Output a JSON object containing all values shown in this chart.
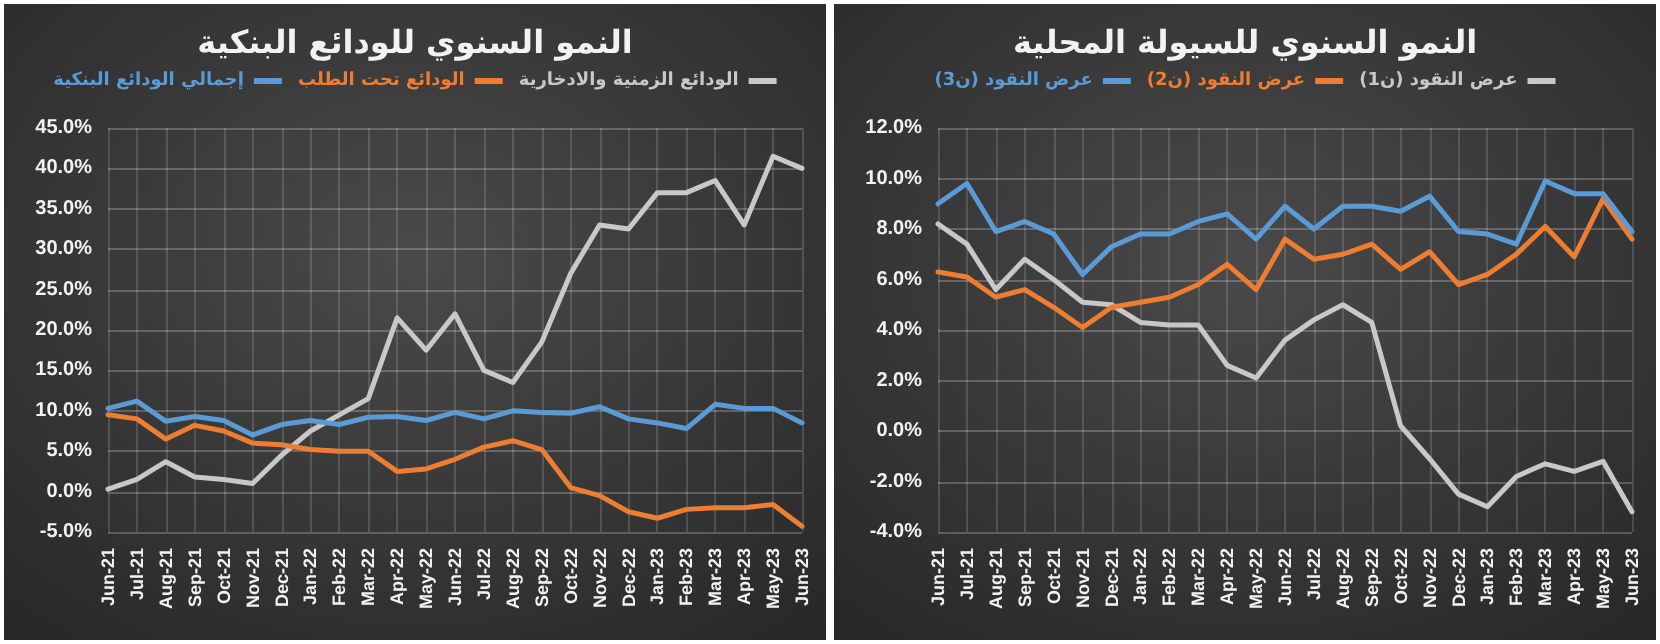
{
  "chart_data": [
    {
      "type": "line",
      "title": "النمو السنوي للودائع البنكية",
      "categories": [
        "Jun-21",
        "Jul-21",
        "Aug-21",
        "Sep-21",
        "Oct-21",
        "Nov-21",
        "Dec-21",
        "Jan-22",
        "Feb-22",
        "Mar-22",
        "Apr-22",
        "May-22",
        "Jun-22",
        "Jul-22",
        "Aug-22",
        "Sep-22",
        "Oct-22",
        "Nov-22",
        "Dec-22",
        "Jan-23",
        "Feb-23",
        "Mar-23",
        "Apr-23",
        "May-23",
        "Jun-23"
      ],
      "series": [
        {
          "name": "الودائع الزمنية والادخارية",
          "color": "#c8c8c8",
          "values": [
            0.3,
            1.5,
            3.7,
            1.8,
            1.5,
            1.0,
            4.5,
            7.5,
            9.5,
            11.5,
            21.5,
            17.5,
            22,
            15,
            13.5,
            18.5,
            27,
            33,
            32.5,
            37,
            37,
            38.5,
            33,
            41.5,
            40
          ]
        },
        {
          "name": "الودائع تحت الطلب",
          "color": "#ed7d31",
          "values": [
            9.5,
            9,
            6.5,
            8.2,
            7.5,
            6,
            5.8,
            5.2,
            5,
            5,
            2.5,
            2.8,
            4,
            5.5,
            6.3,
            5.2,
            0.5,
            -0.5,
            -2.5,
            -3.3,
            -2.2,
            -2,
            -2,
            -1.6,
            -4.3
          ]
        },
        {
          "name": "إجمالي الودائع البنكية",
          "color": "#5b9bd5",
          "values": [
            10.3,
            11.2,
            8.7,
            9.3,
            8.8,
            7,
            8.3,
            8.8,
            8.3,
            9.2,
            9.3,
            8.8,
            9.8,
            9,
            10,
            9.8,
            9.7,
            10.5,
            9,
            8.5,
            7.8,
            10.8,
            10.3,
            10.3,
            8.5
          ]
        }
      ],
      "ylim": [
        -5,
        45
      ],
      "yticks": [
        {
          "value": -5,
          "label": "-5.0%"
        },
        {
          "value": 0,
          "label": "0.0%"
        },
        {
          "value": 5,
          "label": "5.0%"
        },
        {
          "value": 10,
          "label": "10.0%"
        },
        {
          "value": 15,
          "label": "15.0%"
        },
        {
          "value": 20,
          "label": "20.0%"
        },
        {
          "value": 25,
          "label": "25.0%"
        },
        {
          "value": 30,
          "label": "30.0%"
        },
        {
          "value": 35,
          "label": "35.0%"
        },
        {
          "value": 40,
          "label": "40.0%"
        },
        {
          "value": 45,
          "label": "45.0%"
        }
      ],
      "grid": true,
      "legend": "top",
      "marker": "none",
      "line_style": "solid"
    },
    {
      "type": "line",
      "title": "النمو السنوي للسيولة المحلية",
      "categories": [
        "Jun-21",
        "Jul-21",
        "Aug-21",
        "Sep-21",
        "Oct-21",
        "Nov-21",
        "Dec-21",
        "Jan-22",
        "Feb-22",
        "Mar-22",
        "Apr-22",
        "May-22",
        "Jun-22",
        "Jul-22",
        "Aug-22",
        "Sep-22",
        "Oct-22",
        "Nov-22",
        "Dec-22",
        "Jan-23",
        "Feb-23",
        "Mar-23",
        "Apr-23",
        "May-23",
        "Jun-23"
      ],
      "series": [
        {
          "name": "عرض النقود (ن1)",
          "color": "#c8c8c8",
          "values": [
            8.2,
            7.4,
            5.6,
            6.8,
            6.0,
            5.1,
            5.0,
            4.3,
            4.2,
            4.2,
            2.6,
            2.1,
            3.6,
            4.4,
            5.0,
            4.3,
            0.2,
            -1.1,
            -2.5,
            -3.0,
            -1.8,
            -1.3,
            -1.6,
            -1.2,
            -3.2
          ]
        },
        {
          "name": "عرض النقود (ن2)",
          "color": "#ed7d31",
          "values": [
            6.3,
            6.1,
            5.3,
            5.6,
            4.9,
            4.1,
            4.9,
            5.1,
            5.3,
            5.8,
            6.6,
            5.6,
            7.6,
            6.8,
            7.0,
            7.4,
            6.4,
            7.1,
            5.8,
            6.2,
            7.0,
            8.1,
            6.9,
            9.2,
            7.6
          ]
        },
        {
          "name": "عرض النقود (ن3)",
          "color": "#5b9bd5",
          "values": [
            9.0,
            9.8,
            7.9,
            8.3,
            7.8,
            6.2,
            7.3,
            7.8,
            7.8,
            8.3,
            8.6,
            7.6,
            8.9,
            8.0,
            8.9,
            8.9,
            8.7,
            9.3,
            7.9,
            7.8,
            7.4,
            9.9,
            9.4,
            9.4,
            7.9
          ]
        }
      ],
      "ylim": [
        -4,
        12
      ],
      "yticks": [
        {
          "value": -4,
          "label": "-4.0%"
        },
        {
          "value": -2,
          "label": "-2.0%"
        },
        {
          "value": 0,
          "label": "0.0%"
        },
        {
          "value": 2,
          "label": "2.0%"
        },
        {
          "value": 4,
          "label": "4.0%"
        },
        {
          "value": 6,
          "label": "6.0%"
        },
        {
          "value": 8,
          "label": "8.0%"
        },
        {
          "value": 10,
          "label": "10.0%"
        },
        {
          "value": 12,
          "label": "12.0%"
        }
      ],
      "grid": true,
      "legend": "top",
      "marker": "none",
      "line_style": "solid"
    }
  ]
}
